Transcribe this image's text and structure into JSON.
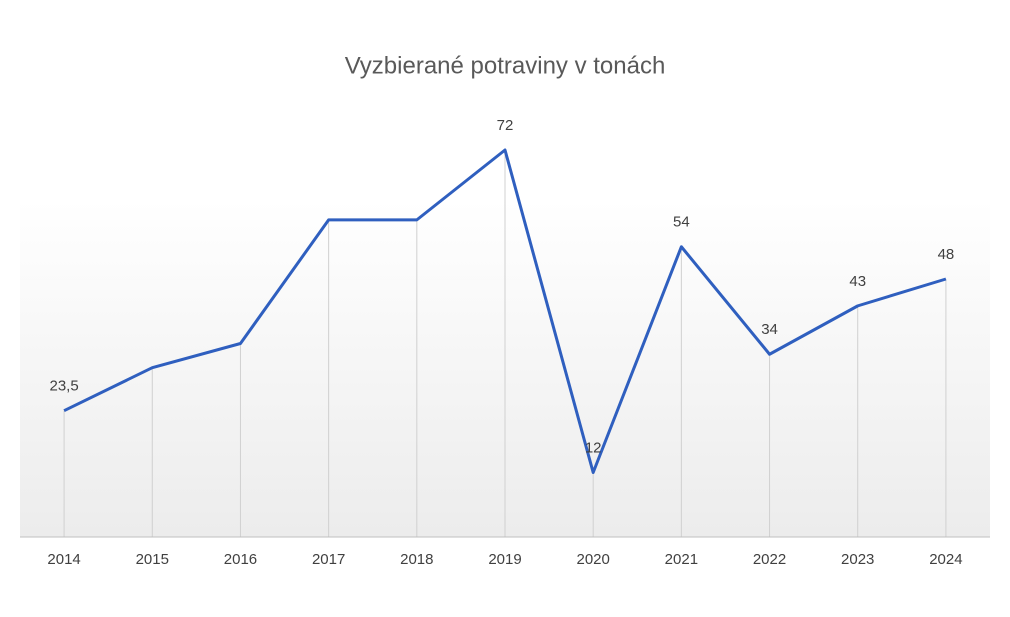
{
  "chart_data": {
    "type": "line",
    "title": "Vyzbierané potraviny v tonách",
    "categories": [
      "2014",
      "2015",
      "2016",
      "2017",
      "2018",
      "2019",
      "2020",
      "2021",
      "2022",
      "2023",
      "2024"
    ],
    "values": [
      23.5,
      31.5,
      36,
      59,
      59,
      72,
      12,
      54,
      34,
      43,
      48
    ],
    "value_labels": [
      "23,5",
      null,
      null,
      null,
      null,
      "72",
      "12",
      "54",
      "34",
      "43",
      "48"
    ],
    "color": "#2f5fbf",
    "ylim": [
      0,
      80
    ]
  }
}
